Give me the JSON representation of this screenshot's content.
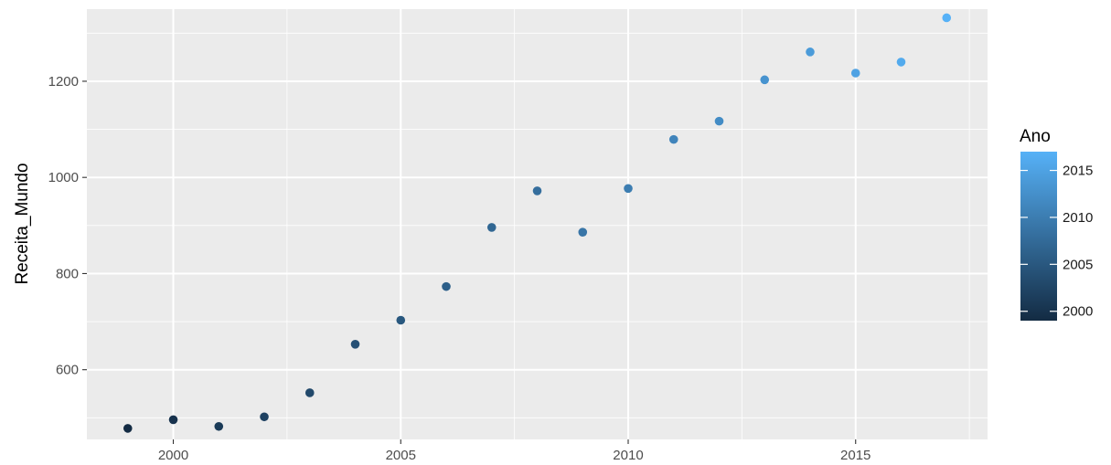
{
  "chart_data": {
    "type": "scatter",
    "title": "",
    "xlabel": "",
    "ylabel": "Receita_Mundo",
    "xlim": [
      1998.1,
      2017.9
    ],
    "ylim": [
      455,
      1350
    ],
    "x_ticks": [
      2000,
      2005,
      2010,
      2015
    ],
    "x_tick_labels": [
      "2000",
      "2005",
      "2010",
      "2015"
    ],
    "y_ticks": [
      600,
      800,
      1000,
      1200
    ],
    "y_tick_labels": [
      "600",
      "800",
      "1000",
      "1200"
    ],
    "grid": true,
    "background": "#ebebeb",
    "points": [
      {
        "x": 1999,
        "y": 478
      },
      {
        "x": 2000,
        "y": 496
      },
      {
        "x": 2001,
        "y": 482
      },
      {
        "x": 2002,
        "y": 502
      },
      {
        "x": 2003,
        "y": 552
      },
      {
        "x": 2004,
        "y": 653
      },
      {
        "x": 2005,
        "y": 703
      },
      {
        "x": 2006,
        "y": 773
      },
      {
        "x": 2007,
        "y": 896
      },
      {
        "x": 2008,
        "y": 972
      },
      {
        "x": 2009,
        "y": 886
      },
      {
        "x": 2010,
        "y": 977
      },
      {
        "x": 2011,
        "y": 1079
      },
      {
        "x": 2012,
        "y": 1117
      },
      {
        "x": 2013,
        "y": 1203
      },
      {
        "x": 2014,
        "y": 1261
      },
      {
        "x": 2015,
        "y": 1217
      },
      {
        "x": 2016,
        "y": 1240
      },
      {
        "x": 2017,
        "y": 1332
      }
    ],
    "color_by": "x",
    "color_scale": {
      "low": "#132b43",
      "high": "#56b1f7"
    },
    "legend": {
      "title": "Ano",
      "position": "right",
      "range": [
        1999,
        2017
      ],
      "ticks": [
        2000,
        2005,
        2010,
        2015
      ],
      "tick_labels": [
        "2000",
        "2005",
        "2010",
        "2015"
      ]
    }
  }
}
